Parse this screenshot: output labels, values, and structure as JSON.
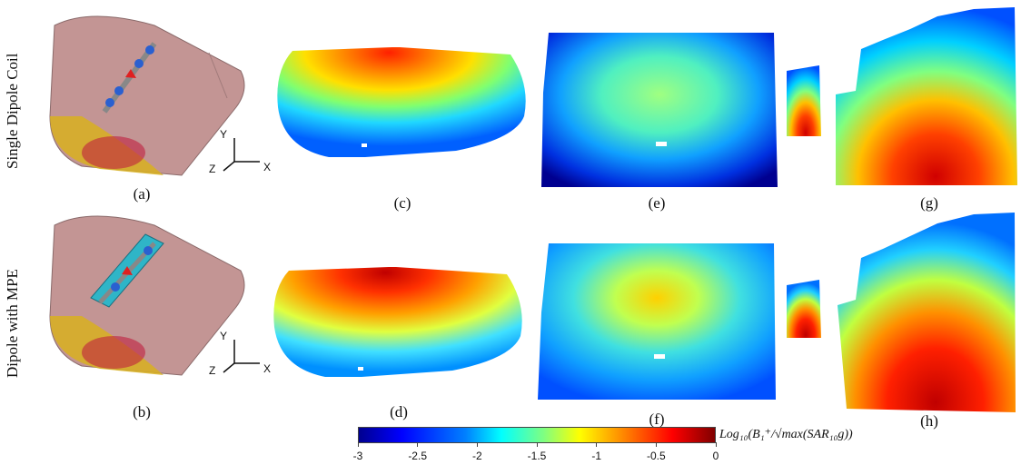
{
  "row_labels": [
    "Single Dipole Coil",
    "Dipole with MPE"
  ],
  "panel_labels": [
    "(a)",
    "(b)",
    "(c)",
    "(d)",
    "(e)",
    "(f)",
    "(g)",
    "(h)"
  ],
  "axes": {
    "x": "X",
    "y": "Y",
    "z": "Z"
  },
  "colorbar": {
    "title": "Log₁₀(B₁⁺/√max(SAR₁₀g))",
    "ticks": [
      "-3",
      "-2.5",
      "-2",
      "-1.5",
      "-1",
      "-0.5",
      "0"
    ],
    "range": [
      -3,
      0
    ],
    "colormap": "jet"
  },
  "colors": {
    "tissue": "#c39594",
    "coil": "#2fb5c7",
    "element": "#2a60d0",
    "feed": "#e02020"
  }
}
